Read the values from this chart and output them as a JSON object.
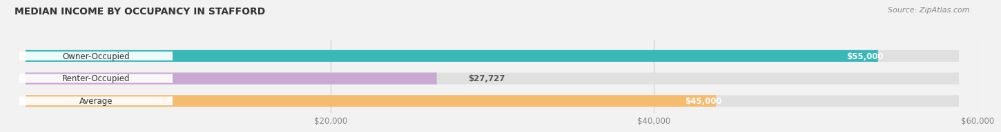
{
  "title": "MEDIAN INCOME BY OCCUPANCY IN STAFFORD",
  "source": "Source: ZipAtlas.com",
  "categories": [
    "Owner-Occupied",
    "Renter-Occupied",
    "Average"
  ],
  "values": [
    55000,
    27727,
    45000
  ],
  "bar_colors": [
    "#3ab8b8",
    "#c9a8d4",
    "#f5bc6e"
  ],
  "bar_labels": [
    "$55,000",
    "$27,727",
    "$45,000"
  ],
  "label_inside": [
    true,
    false,
    true
  ],
  "xlim": [
    0,
    60000
  ],
  "xticks": [
    20000,
    40000,
    60000
  ],
  "xtick_labels": [
    "$20,000",
    "$40,000",
    "$60,000"
  ],
  "background_color": "#f2f2f2",
  "bar_bg_color": "#e0e0e0",
  "title_fontsize": 10,
  "source_fontsize": 8,
  "label_fontsize": 8.5,
  "tick_fontsize": 8.5
}
